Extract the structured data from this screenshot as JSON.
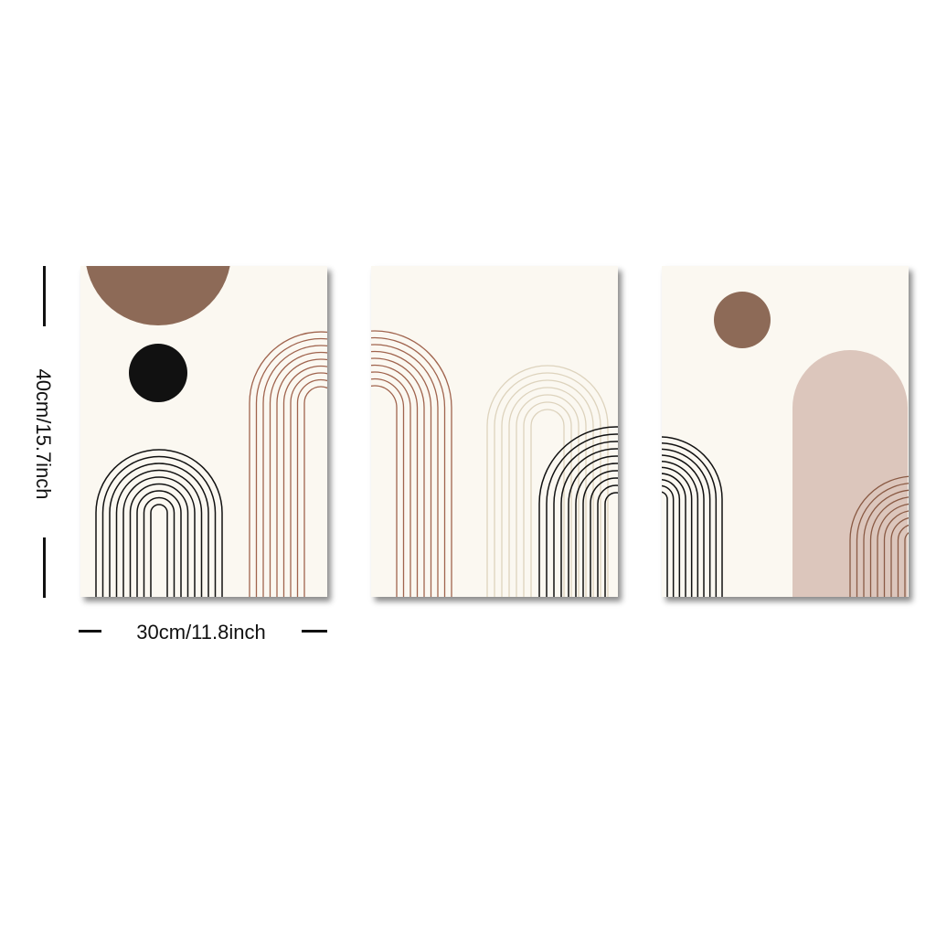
{
  "dimensions": {
    "height_label": "40cm/15.7inch",
    "width_label": "30cm/11.8inch"
  },
  "colors": {
    "background": "#ffffff",
    "canvas": "#fbf8f1",
    "terracotta": "#8d6a57",
    "blush": "#dcc6bc",
    "rust_line": "#a0644e",
    "black": "#111111",
    "cream_line": "#e9e2cf"
  },
  "panels": [
    {
      "name": "left",
      "elements": [
        "brown-half-circle",
        "black-circle",
        "black-arch-lines",
        "rust-arch-lines"
      ]
    },
    {
      "name": "middle",
      "elements": [
        "rust-arch-lines",
        "cream-arch-lines",
        "black-arch-lines"
      ]
    },
    {
      "name": "right",
      "elements": [
        "brown-circle",
        "blush-arch-shape",
        "black-arch-lines",
        "rust-arch-lines"
      ]
    }
  ]
}
